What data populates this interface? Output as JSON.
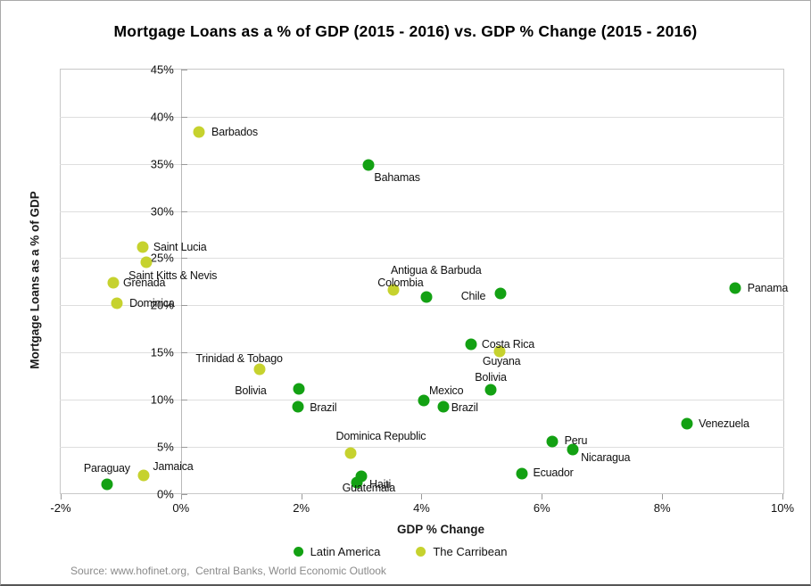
{
  "chart_data": {
    "type": "scatter",
    "title": "Mortgage Loans as a % of GDP (2015 - 2016) vs. GDP % Change (2015 - 2016)",
    "xlabel": "GDP % Change",
    "ylabel": "Mortgage Loans as a  % of GDP",
    "xlim": [
      -2,
      10
    ],
    "ylim": [
      0,
      45
    ],
    "x_ticks": [
      {
        "label": "-2%",
        "value": -2
      },
      {
        "label": "0%",
        "value": 0
      },
      {
        "label": "2%",
        "value": 2
      },
      {
        "label": "4%",
        "value": 4
      },
      {
        "label": "6%",
        "value": 6
      },
      {
        "label": "8%",
        "value": 8
      },
      {
        "label": "10%",
        "value": 10
      }
    ],
    "y_ticks": [
      {
        "label": "0%",
        "value": 0
      },
      {
        "label": "5%",
        "value": 5
      },
      {
        "label": "10%",
        "value": 10
      },
      {
        "label": "15%",
        "value": 15
      },
      {
        "label": "20%",
        "value": 20
      },
      {
        "label": "25%",
        "value": 25
      },
      {
        "label": "30%",
        "value": 30
      },
      {
        "label": "35%",
        "value": 35
      },
      {
        "label": "40%",
        "value": 40
      },
      {
        "label": "45%",
        "value": 45
      }
    ],
    "grid": "horizontal",
    "legend_position": "bottom",
    "series": [
      {
        "name": "Latin America",
        "color": "#13a113",
        "points": [
          {
            "label": "Bahamas",
            "x": 3.12,
            "y": 34.85,
            "label_dx": 32,
            "label_dy": 14
          },
          {
            "label": "Colombia",
            "x": 4.08,
            "y": 20.9,
            "label_dx": -29,
            "label_dy": -16
          },
          {
            "label": "Chile",
            "x": 5.32,
            "y": 21.3,
            "label_dx": -31,
            "label_dy": 3
          },
          {
            "label": "Panama",
            "x": 9.22,
            "y": 21.85,
            "label_dx": 36,
            "label_dy": 0
          },
          {
            "label": "Costa Rica",
            "x": 4.83,
            "y": 15.9,
            "label_dx": 41,
            "label_dy": 0
          },
          {
            "label": "Bolivia",
            "x": 1.96,
            "y": 11.1,
            "label_dx": -54,
            "label_dy": 2
          },
          {
            "label": "Bolivia",
            "x": 5.15,
            "y": 11.05,
            "label_dx": 0,
            "label_dy": -14
          },
          {
            "label": "Brazil",
            "x": 1.95,
            "y": 9.25,
            "label_dx": 28,
            "label_dy": 1
          },
          {
            "label": "Brazil",
            "x": 4.36,
            "y": 9.25,
            "label_dx": 24,
            "label_dy": 1
          },
          {
            "label": "Mexico",
            "x": 4.04,
            "y": 9.9,
            "label_dx": 25,
            "label_dy": -11
          },
          {
            "label": "Haiti",
            "x": 3.0,
            "y": 1.9,
            "label_dx": 21,
            "label_dy": 9
          },
          {
            "label": "Guatemala",
            "x": 2.93,
            "y": 1.2,
            "label_dx": 13,
            "label_dy": 6
          },
          {
            "label": "Paraguay",
            "x": -1.23,
            "y": 1.0,
            "label_dx": 0,
            "label_dy": -18
          },
          {
            "label": "Venezuela",
            "x": 8.42,
            "y": 7.45,
            "label_dx": 41,
            "label_dy": 0
          },
          {
            "label": "Peru",
            "x": 6.18,
            "y": 5.6,
            "label_dx": 26,
            "label_dy": -1
          },
          {
            "label": "Nicaragua",
            "x": 6.51,
            "y": 4.75,
            "label_dx": 37,
            "label_dy": 9
          },
          {
            "label": "Ecuador",
            "x": 5.67,
            "y": 2.15,
            "label_dx": 35,
            "label_dy": -1
          }
        ]
      },
      {
        "name": "The Carribean",
        "color": "#c6d22e",
        "points": [
          {
            "label": "Barbados",
            "x": 0.3,
            "y": 38.35,
            "label_dx": 40,
            "label_dy": 0
          },
          {
            "label": "Saint Lucia",
            "x": -0.64,
            "y": 26.2,
            "label_dx": 42,
            "label_dy": 0
          },
          {
            "label": "Saint Kitts & Nevis",
            "x": -0.58,
            "y": 24.6,
            "label_dx": 30,
            "label_dy": 15
          },
          {
            "label": "Grenada",
            "x": -1.13,
            "y": 22.4,
            "label_dx": 35,
            "label_dy": 0
          },
          {
            "label": "Dominica",
            "x": -1.06,
            "y": 20.2,
            "label_dx": 39,
            "label_dy": 0
          },
          {
            "label": "Antigua & Barbuda",
            "x": 3.53,
            "y": 21.6,
            "label_dx": 48,
            "label_dy": -22
          },
          {
            "label": "Guyana",
            "x": 5.3,
            "y": 15.15,
            "label_dx": 2,
            "label_dy": 11
          },
          {
            "label": "Trinidad & Tobago",
            "x": 1.31,
            "y": 13.25,
            "label_dx": -23,
            "label_dy": -12
          },
          {
            "label": "Dominica Republic",
            "x": 2.82,
            "y": 4.35,
            "label_dx": 34,
            "label_dy": -19
          },
          {
            "label": "Jamaica",
            "x": -0.62,
            "y": 2.0,
            "label_dx": 33,
            "label_dy": -10
          }
        ]
      }
    ]
  },
  "footer": {
    "source": "Source: www.hofinet.org,  Central Banks, World Economic Outlook"
  }
}
